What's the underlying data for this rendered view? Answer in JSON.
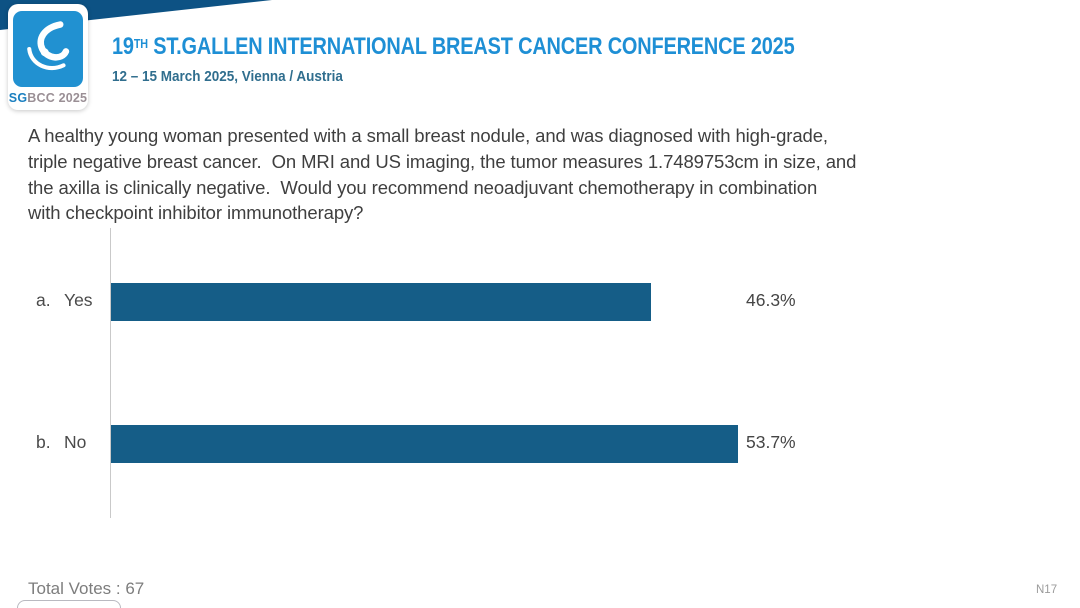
{
  "header": {
    "title_number": "19",
    "title_superscript": "TH",
    "title_rest": " ST.GALLEN INTERNATIONAL BREAST CANCER CONFERENCE 2025",
    "subtitle": "12 – 15 March 2025, Vienna / Austria",
    "logo": {
      "icon": "sgbcc-breast-logo",
      "text_sg": "SG",
      "text_rest": "BCC 2025"
    }
  },
  "question": {
    "lines": [
      "A healthy young woman presented with a small breast nodule, and was diagnosed with high-grade,",
      "triple negative breast cancer.  On MRI and US imaging, the tumor measures 1.7489753cm in size, and",
      "the axilla is clinically negative.  Would you recommend neoadjuvant chemotherapy in combination",
      "with checkpoint inhibitor immunotherapy?"
    ]
  },
  "chart_data": {
    "type": "bar",
    "orientation": "horizontal",
    "option_letters": [
      "a.",
      "b."
    ],
    "categories": [
      "Yes",
      "No"
    ],
    "values": [
      46.3,
      53.7
    ],
    "value_labels": [
      "46.3%",
      "53.7%"
    ],
    "xlim": [
      0,
      100
    ],
    "grid": false,
    "bar_color": "#155d87",
    "axis_line_color": "#c9c9c9"
  },
  "footer": {
    "total_votes": "Total Votes : 67",
    "slide_code": "N17"
  },
  "colors": {
    "brand_blue": "#1e8fd5",
    "navy_band": "#0d5284",
    "logo_blue": "#2191d1",
    "subtitle_blue": "#306e8e",
    "bar_blue": "#155d87"
  }
}
